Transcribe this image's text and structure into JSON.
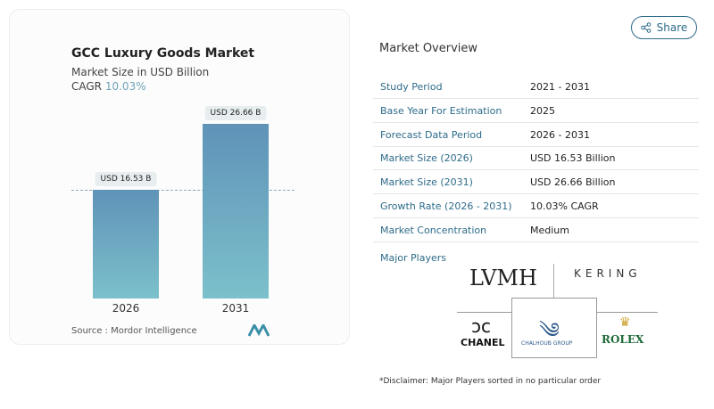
{
  "share_label": "Share",
  "chart_data": {
    "type": "bar",
    "title": "GCC Luxury Goods Market",
    "subtitle": "Market Size in USD Billion",
    "cagr_label": "CAGR",
    "cagr_value": "10.03%",
    "categories": [
      "2026",
      "2031"
    ],
    "values": [
      16.53,
      26.66
    ],
    "data_labels": [
      "USD 16.53 B",
      "USD 26.66 B"
    ],
    "colors": [
      "#5f93b8",
      "#7cc0cb"
    ],
    "source": "Source :  Mordor Intelligence"
  },
  "overview": {
    "title": "Market Overview",
    "rows": [
      {
        "k": "Study Period",
        "v": "2021 - 2031"
      },
      {
        "k": "Base Year For Estimation",
        "v": "2025"
      },
      {
        "k": "Forecast Data Period",
        "v": "2026 - 2031"
      },
      {
        "k": "Market Size (2026)",
        "v": "USD 16.53 Billion"
      },
      {
        "k": "Market Size (2031)",
        "v": "USD 26.66 Billion"
      },
      {
        "k": "Growth Rate (2026 - 2031)",
        "v": "10.03% CAGR"
      },
      {
        "k": "Market Concentration",
        "v": "Medium"
      }
    ],
    "major_players_label": "Major Players",
    "players": [
      "LVMH",
      "KERING",
      "CHANEL",
      "CHALHOUB GROUP",
      "ROLEX"
    ]
  },
  "disclaimer": "*Disclaimer: Major Players sorted in no particular order"
}
